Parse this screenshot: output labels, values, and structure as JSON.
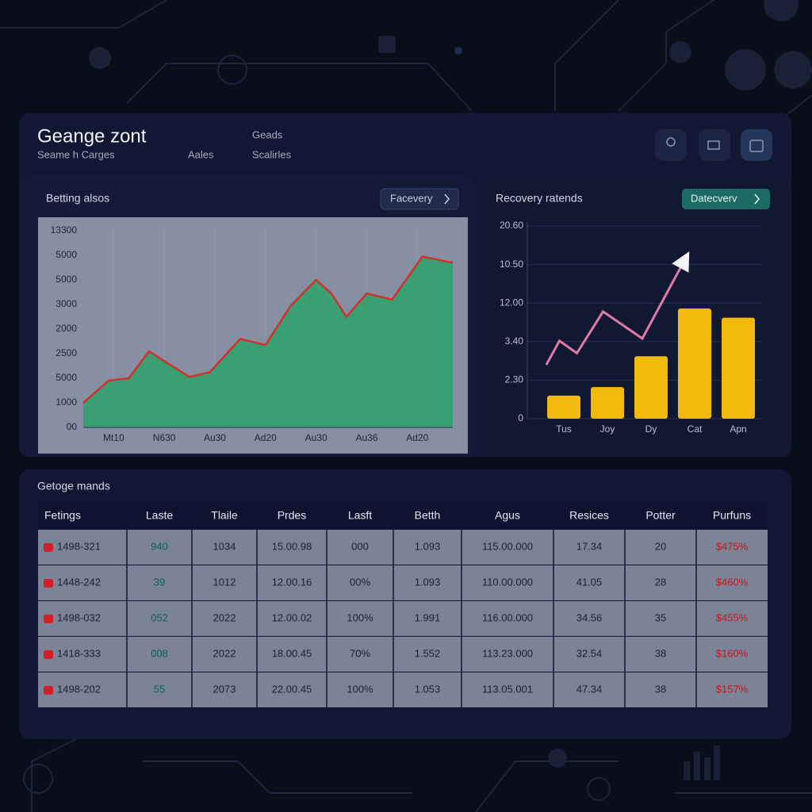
{
  "header": {
    "title": "Geange zont",
    "subtitle": "Seame h Carges",
    "links": [
      "Aales",
      "Geads",
      "Scalirles"
    ]
  },
  "chart_data": [
    {
      "type": "area",
      "title": "Betting alsos",
      "button": "Facevery",
      "x": [
        0.4,
        0.9,
        1.3,
        1.7,
        2.0,
        2.5,
        2.9,
        3.5,
        4.0,
        4.5,
        5.0,
        5.3,
        5.6,
        6.0,
        6.5,
        7.1,
        7.7
      ],
      "values": [
        1000,
        1900,
        2000,
        3100,
        2700,
        2050,
        2250,
        3600,
        3350,
        4950,
        6000,
        5450,
        4500,
        5450,
        5200,
        6950,
        6700
      ],
      "color": "#3a9f72",
      "line_color": "#d2302c",
      "xlim": [
        0.4,
        7.7
      ],
      "xticks": [
        {
          "value": 1,
          "label": "Mt10"
        },
        {
          "value": 2,
          "label": "N630"
        },
        {
          "value": 3,
          "label": "Au30"
        },
        {
          "value": 4,
          "label": "Ad20"
        },
        {
          "value": 5,
          "label": "Au30"
        },
        {
          "value": 6,
          "label": "Au36"
        },
        {
          "value": 7,
          "label": "Ad20"
        }
      ],
      "ylim": [
        0,
        8000
      ],
      "yticks": [
        {
          "value": 0,
          "label": "00"
        },
        1000,
        {
          "value": 2000,
          "label": "5000"
        },
        {
          "value": 3000,
          "label": "2500"
        },
        {
          "value": 4000,
          "label": "2000"
        },
        {
          "value": 5000,
          "label": "3000"
        },
        {
          "value": 6000,
          "label": "5000"
        },
        {
          "value": 7000,
          "label": "5000"
        },
        {
          "value": 8000,
          "label": "13300"
        }
      ],
      "grid": false
    },
    {
      "type": "bar",
      "title": "Recovery ratends",
      "button": "Datecverv",
      "categories": [
        "Tus",
        "Joy",
        "Dy",
        "Cat",
        "Apn"
      ],
      "values": [
        3.0,
        4.1,
        8.1,
        14.3,
        13.1
      ],
      "color": "#f0b90b",
      "line": {
        "x": [
          -0.4,
          -0.1,
          0.3,
          0.9,
          1.8,
          2.8
        ],
        "values": [
          7.0,
          10.1,
          8.5,
          13.9,
          10.4,
          20.9
        ],
        "color": "#e07aa8"
      },
      "ylim": [
        0,
        25
      ],
      "yticks": [
        0,
        {
          "value": 5,
          "label": "2.30"
        },
        {
          "value": 10,
          "label": "3.40"
        },
        {
          "value": 15,
          "label": "12.00"
        },
        {
          "value": 20,
          "label": "10.50"
        },
        {
          "value": 25,
          "label": "20.60"
        }
      ],
      "grid": true
    }
  ],
  "table": {
    "title": "Getoge mands",
    "columns": [
      "Fetings",
      "Laste",
      "Tlaile",
      "Prdes",
      "Lasft",
      "Betth",
      "Agus",
      "Resices",
      "Potter",
      "Purfuns"
    ],
    "rows": [
      [
        "1498-321",
        "940",
        "1034",
        "15.00.98",
        "000",
        "1.093",
        "115.00.000",
        "17.34",
        "20",
        "$475%"
      ],
      [
        "1448-242",
        "39",
        "1012",
        "12.00.16",
        "00%",
        "1.093",
        "110.00.000",
        "41.05",
        "28",
        "$460%"
      ],
      [
        "1498-032",
        "052",
        "2022",
        "12.00.02",
        "100%",
        "1.991",
        "116.00.000",
        "34.56",
        "35",
        "$455%"
      ],
      [
        "1418-333",
        "008",
        "2022",
        "18.00.45",
        "70%",
        "1.552",
        "113.23.000",
        "32.54",
        "38",
        "$160%"
      ],
      [
        "1498-202",
        "55",
        "2073",
        "22.00.45",
        "100%",
        "1.053",
        "113.05.001",
        "47.34",
        "38",
        "$157%"
      ]
    ]
  }
}
